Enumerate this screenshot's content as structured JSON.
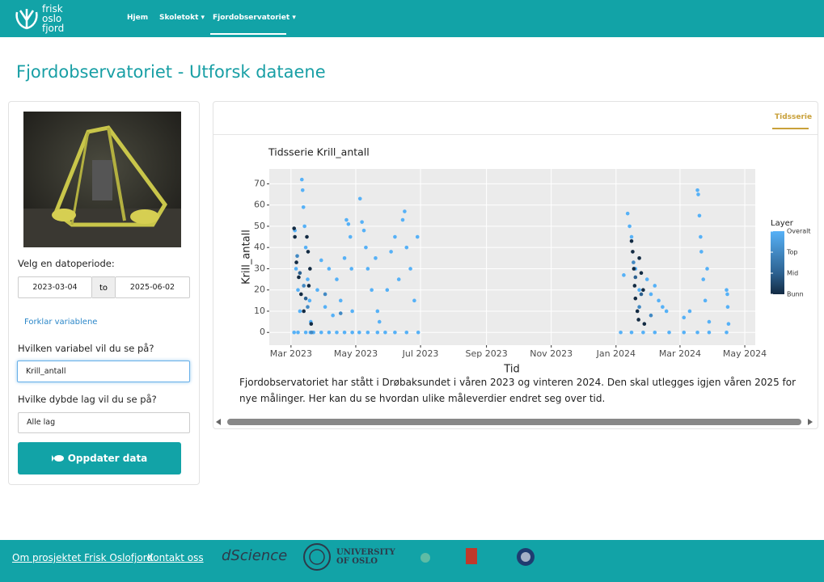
{
  "nav": {
    "logo": [
      "frisk",
      "oslo",
      "fjord"
    ],
    "items": [
      "Hjem",
      "Skoletokt",
      "Fjordobservatoriet"
    ]
  },
  "page_title": "Fjordobservatoriet - Utforsk dataene",
  "sidebar": {
    "date_label": "Velg en datoperiode:",
    "date_start": "2023-03-04",
    "date_separator": "to",
    "date_end": "2025-06-02",
    "explain_link": "Forklar variablene",
    "variable_label": "Hvilken variabel vil du se på?",
    "variable_value": "Krill_antall",
    "depth_label": "Hvilke dybde lag vil du se på?",
    "depth_value": "Alle lag",
    "button": "Oppdater data"
  },
  "tab": "Tidsserie",
  "chart_data": {
    "type": "scatter",
    "title": "Tidsserie Krill_antall",
    "x_label": "Tid",
    "y_label": "Krill_antall",
    "legend_title": "Layer",
    "xlim": [
      2023.106,
      2024.359
    ],
    "xticks": [
      {
        "value": 2023.162,
        "label": "Mar 2023"
      },
      {
        "value": 2023.329,
        "label": "May 2023"
      },
      {
        "value": 2023.496,
        "label": "Jul 2023"
      },
      {
        "value": 2023.666,
        "label": "Sep 2023"
      },
      {
        "value": 2023.833,
        "label": "Nov 2023"
      },
      {
        "value": 2024.0,
        "label": "Jan 2024"
      },
      {
        "value": 2024.165,
        "label": "Mar 2024"
      },
      {
        "value": 2024.332,
        "label": "May 2024"
      }
    ],
    "ylim": [
      -6,
      77
    ],
    "yticks": [
      0,
      10,
      20,
      30,
      40,
      50,
      60,
      70
    ],
    "grid": true,
    "series": [
      {
        "name": "Overalt",
        "color": "#56B1F7",
        "x": [
          2023.17,
          2023.172,
          2023.175,
          2023.18,
          2023.185,
          2023.19,
          2023.192,
          2023.194,
          2023.197,
          2023.2,
          2023.205,
          2023.21,
          2023.213,
          2023.18,
          2023.2,
          2023.212,
          2023.22,
          2023.23,
          2023.24,
          2023.25,
          2023.26,
          2023.27,
          2023.28,
          2023.29,
          2023.3,
          2023.305,
          2023.31,
          2023.315,
          2023.318,
          2023.32,
          2023.24,
          2023.26,
          2023.28,
          2023.3,
          2023.32,
          2023.338,
          2023.34,
          2023.345,
          2023.35,
          2023.355,
          2023.36,
          2023.37,
          2023.38,
          2023.385,
          2023.39,
          2023.36,
          2023.385,
          2023.405,
          2023.41,
          2023.42,
          2023.43,
          2023.44,
          2023.45,
          2023.455,
          2023.46,
          2023.47,
          2023.48,
          2023.488,
          2023.49,
          2023.43,
          2023.46,
          2024.012,
          2024.02,
          2024.03,
          2024.035,
          2024.04,
          2024.05,
          2024.06,
          2024.08,
          2024.09,
          2024.1,
          2024.11,
          2024.12,
          2024.13,
          2024.137,
          2024.04,
          2024.07,
          2024.1,
          2024.175,
          2024.175,
          2024.19,
          2024.21,
          2024.212,
          2024.215,
          2024.218,
          2024.22,
          2024.225,
          2024.23,
          2024.235,
          2024.24,
          2024.21,
          2024.24,
          2024.285,
          2024.287,
          2024.288,
          2024.29,
          2024.285
        ],
        "values": [
          0,
          48,
          30,
          20,
          10,
          72,
          67,
          59,
          50,
          40,
          25,
          15,
          5,
          0,
          0,
          0,
          0,
          20,
          34,
          12,
          30,
          8,
          25,
          15,
          35,
          53,
          51,
          45,
          30,
          10,
          0,
          0,
          0,
          0,
          0,
          0,
          63,
          52,
          48,
          40,
          30,
          20,
          35,
          10,
          5,
          0,
          0,
          0,
          20,
          38,
          45,
          25,
          53,
          57,
          40,
          30,
          15,
          45,
          0,
          0,
          0,
          0,
          27,
          56,
          50,
          45,
          30,
          20,
          25,
          18,
          22,
          15,
          12,
          10,
          0,
          0,
          0,
          0,
          7,
          0,
          10,
          67,
          65,
          55,
          45,
          38,
          25,
          15,
          30,
          5,
          0,
          0,
          20,
          18,
          12,
          4,
          0
        ]
      },
      {
        "name": "Top",
        "color": "#4289C3",
        "x": [
          2023.178,
          2023.195,
          2023.205,
          2023.215,
          2023.25,
          2023.29,
          2024.045,
          2024.06,
          2024.09
        ],
        "values": [
          36,
          22,
          12,
          0,
          18,
          9,
          33,
          12,
          8
        ]
      },
      {
        "name": "Mid",
        "color": "#2C6190",
        "x": [
          2023.185,
          2023.2,
          2024.05,
          2024.065
        ],
        "values": [
          28,
          16,
          26,
          18
        ]
      },
      {
        "name": "Bunn",
        "color": "#132B43",
        "x": [
          2023.17,
          2023.172,
          2023.176,
          2023.182,
          2023.188,
          2023.195,
          2023.203,
          2023.206,
          2023.208,
          2023.211,
          2023.214,
          2024.04,
          2024.043,
          2024.046,
          2024.048,
          2024.05,
          2024.055,
          2024.058,
          2024.06,
          2024.065,
          2024.07,
          2024.073
        ],
        "values": [
          49,
          45,
          33,
          26,
          18,
          10,
          45,
          38,
          22,
          30,
          4,
          43,
          38,
          30,
          22,
          16,
          10,
          6,
          35,
          28,
          20,
          4
        ]
      }
    ]
  },
  "description": "Fjordobservatoriet har stått i Drøbaksundet i våren 2023 og vinteren 2024. Den skal utlegges igjen våren 2025 for nye målinger. Her kan du se hvordan ulike måleverdier endret seg over tid.",
  "footer": {
    "links": [
      "Om prosjektet Frisk Oslofjord",
      "Kontakt oss"
    ],
    "logos": [
      "dScience",
      "UNIVERSITY OF OSLO"
    ]
  }
}
